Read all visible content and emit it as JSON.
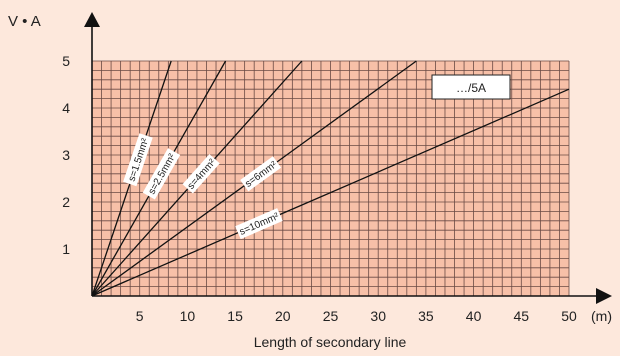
{
  "chart_data": {
    "type": "line",
    "ylabel": "V • A",
    "xlabel": "Length of secondary line",
    "x_unit": "(m)",
    "xlim": [
      0,
      50
    ],
    "ylim": [
      0,
      5
    ],
    "x_ticks": [
      5,
      10,
      15,
      20,
      25,
      30,
      35,
      40,
      45,
      50
    ],
    "y_ticks": [
      1,
      2,
      3,
      4,
      5
    ],
    "grid": true,
    "legend_box": "…/5A",
    "series": [
      {
        "name": "s=1.5mm²",
        "x": [
          0,
          8.3
        ],
        "y": [
          0,
          5
        ]
      },
      {
        "name": "s=2.5mm²",
        "x": [
          0,
          14.0
        ],
        "y": [
          0,
          5
        ]
      },
      {
        "name": "s=4mm²",
        "x": [
          0,
          22.0
        ],
        "y": [
          0,
          5
        ]
      },
      {
        "name": "s=6mm²",
        "x": [
          0,
          34.0
        ],
        "y": [
          0,
          5
        ]
      },
      {
        "name": "s=10mm²",
        "x": [
          0,
          50
        ],
        "y": [
          0,
          4.4
        ]
      }
    ]
  }
}
